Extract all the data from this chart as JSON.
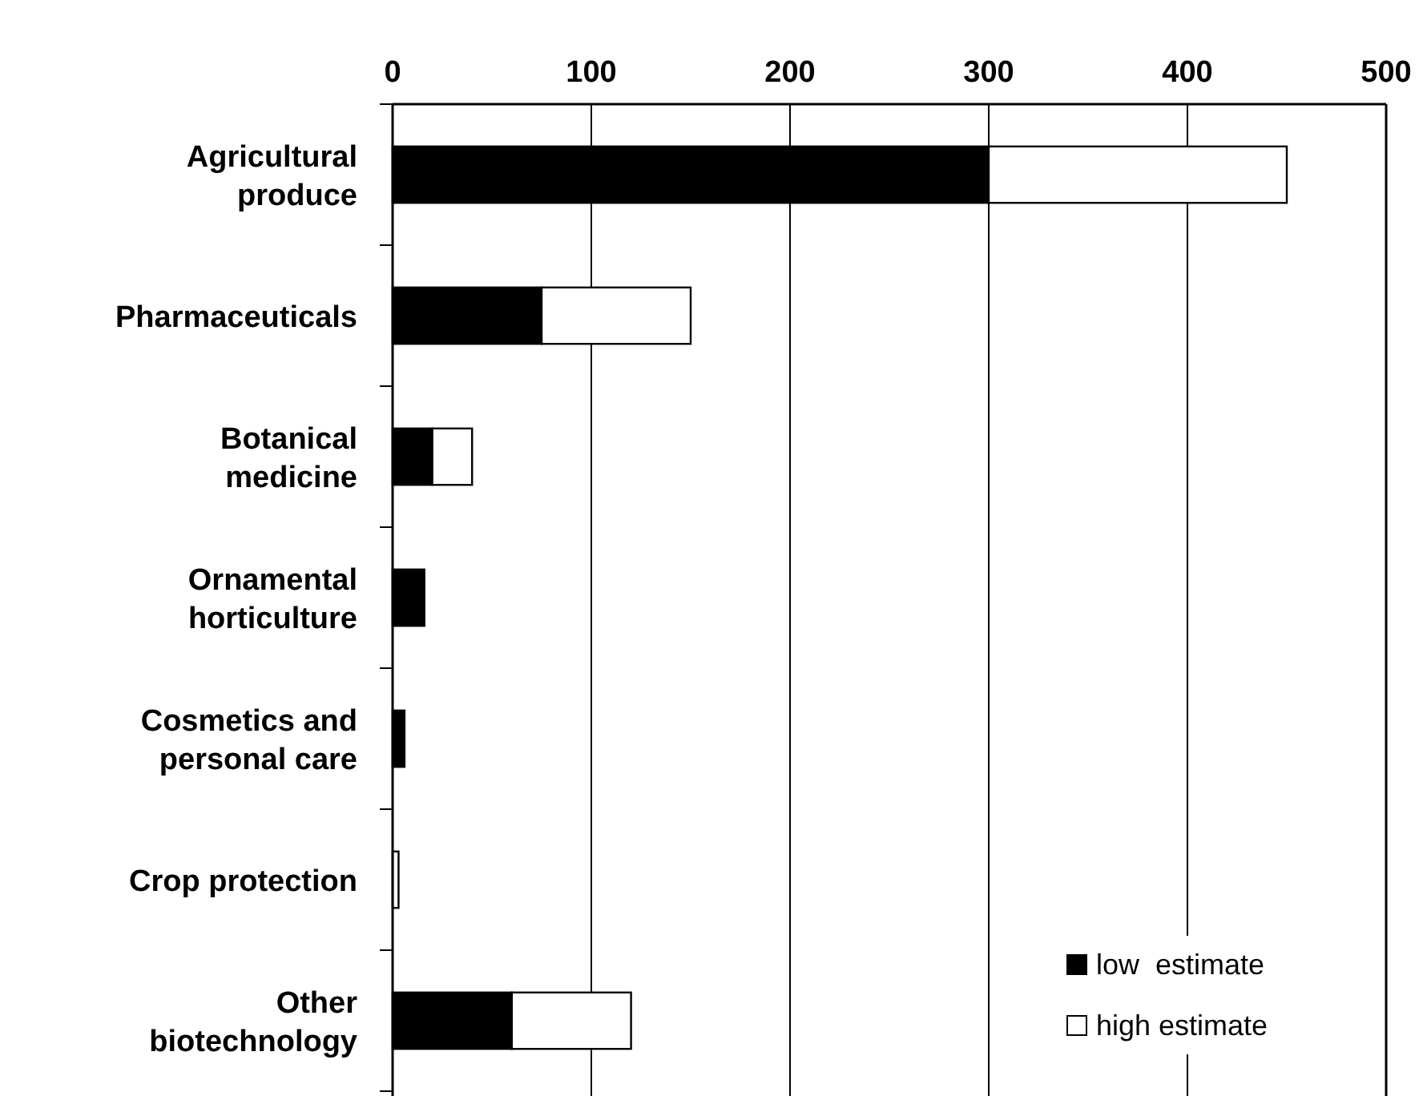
{
  "chart_data": {
    "type": "bar",
    "orientation": "horizontal",
    "stacked": true,
    "categories": [
      "Agricultural produce",
      "Pharmaceuticals",
      "Botanical medicine",
      "Ornamental horticulture",
      "Cosmetics and personal care",
      "Crop protection",
      "Other biotechnology"
    ],
    "series": [
      {
        "name": "low  estimate",
        "color": "#000000",
        "values": [
          300,
          75,
          20,
          16,
          6,
          0,
          60
        ]
      },
      {
        "name": "high estimate",
        "color": "#ffffff",
        "values": [
          150,
          75,
          20,
          0,
          0,
          3,
          60
        ]
      }
    ],
    "xlim": [
      0,
      500
    ],
    "xticks": [
      0,
      100,
      200,
      300,
      400,
      500
    ],
    "grid": "x",
    "legend": "bottom right"
  }
}
